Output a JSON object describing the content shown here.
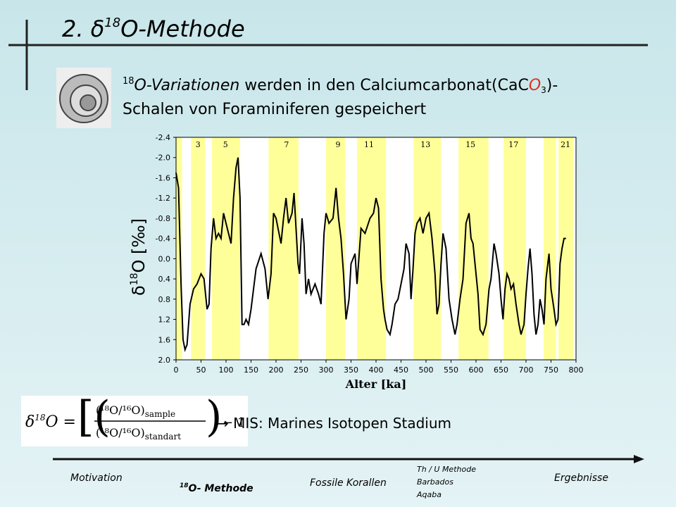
{
  "slide": {
    "title": {
      "prefix": "2. δ",
      "sup": "18",
      "rest": "O-Methode"
    },
    "intro": {
      "sup1": "18",
      "line1a": "O-Variationen",
      "line1b": " werden in den Calciumcarbonat(CaC",
      "o": "O",
      "sub3": "3",
      "line1c": ")-",
      "line2": "Schalen von Foraminiferen gespeichert"
    },
    "formula": {
      "lhs": "δ",
      "lhs_sup": "18",
      "lhs_o": "O =",
      "num": "(¹⁸O/¹⁶O)",
      "num_sub": "sample",
      "den": "(¹⁸O/¹⁶O)",
      "den_sub": "standart",
      "tail": "− 1"
    },
    "annotation": "→ MIS: Marines Isotopen Stadium",
    "nav": {
      "motivation": "Motivation",
      "methode_sup": "18",
      "methode": "O- Methode",
      "korallen": "Fossile Korallen",
      "thu": "Th / U Methode",
      "barbados": "Barbados",
      "aqaba": "Aqaba",
      "ergebnisse": "Ergebnisse"
    }
  },
  "chart_data": {
    "type": "line",
    "y_label": {
      "delta": "δ",
      "sup": "18",
      "rest": "O [‰]"
    },
    "x_label": "Alter [ka]",
    "xlim": [
      0,
      800
    ],
    "xticks": [
      0,
      50,
      100,
      150,
      200,
      250,
      300,
      350,
      400,
      450,
      500,
      550,
      600,
      650,
      700,
      750,
      800
    ],
    "ylim": [
      2.0,
      -2.4
    ],
    "yticks": [
      -2.4,
      {
        "value": -2,
        "label": "-2.0"
      },
      -1.6,
      -1.2,
      -0.8,
      -0.4,
      {
        "value": 0,
        "label": "0.0"
      },
      0.4,
      0.8,
      1.2,
      1.6,
      {
        "value": 2,
        "label": "2.0"
      }
    ],
    "band_color": "#ffff99",
    "bands": [
      [
        0,
        12
      ],
      [
        30,
        58
      ],
      [
        72,
        128
      ],
      [
        185,
        245
      ],
      [
        300,
        338
      ],
      [
        362,
        420
      ],
      [
        475,
        530
      ],
      [
        565,
        625
      ],
      [
        655,
        700
      ],
      [
        735,
        760
      ],
      [
        765,
        795
      ]
    ],
    "stage_labels": [
      {
        "label": "3",
        "x": 44
      },
      {
        "label": "5",
        "x": 99
      },
      {
        "label": "7",
        "x": 221
      },
      {
        "label": "9",
        "x": 324
      },
      {
        "label": "11",
        "x": 386
      },
      {
        "label": "13",
        "x": 499
      },
      {
        "label": "15",
        "x": 589
      },
      {
        "label": "17",
        "x": 675
      },
      {
        "label": "21",
        "x": 779
      }
    ],
    "series": [
      {
        "color": "#000000",
        "x": [
          0,
          5,
          10,
          14,
          18,
          22,
          28,
          35,
          42,
          50,
          56,
          60,
          62,
          66,
          70,
          75,
          80,
          85,
          90,
          95,
          100,
          105,
          110,
          115,
          120,
          124,
          128,
          132,
          136,
          140,
          145,
          150,
          160,
          170,
          178,
          184,
          190,
          195,
          200,
          210,
          215,
          220,
          225,
          232,
          236,
          240,
          244,
          247,
          252,
          256,
          260,
          265,
          270,
          278,
          285,
          290,
          296,
          300,
          306,
          314,
          320,
          325,
          330,
          335,
          340,
          346,
          350,
          358,
          362,
          370,
          378,
          388,
          395,
          400,
          405,
          410,
          415,
          418,
          422,
          428,
          432,
          438,
          444,
          450,
          456,
          460,
          466,
          470,
          474,
          478,
          482,
          488,
          494,
          500,
          506,
          512,
          518,
          522,
          526,
          530,
          534,
          540,
          546,
          552,
          558,
          562,
          568,
          574,
          580,
          586,
          590,
          594,
          600,
          604,
          608,
          614,
          620,
          626,
          630,
          636,
          640,
          646,
          650,
          654,
          658,
          662,
          666,
          670,
          675,
          680,
          686,
          690,
          696,
          700,
          704,
          708,
          712,
          716,
          720,
          724,
          728,
          732,
          736,
          740,
          746,
          750,
          756,
          760,
          764,
          768,
          772,
          776,
          780
        ],
        "values": [
          -1.7,
          -1.4,
          0.5,
          1.6,
          1.8,
          1.7,
          0.9,
          0.6,
          0.5,
          0.3,
          0.4,
          0.8,
          1.0,
          0.9,
          -0.2,
          -0.8,
          -0.4,
          -0.5,
          -0.4,
          -0.9,
          -0.7,
          -0.5,
          -0.3,
          -1.2,
          -1.8,
          -2.0,
          -1.2,
          1.3,
          1.3,
          1.2,
          1.3,
          1.0,
          0.2,
          -0.1,
          0.2,
          0.8,
          0.3,
          -0.9,
          -0.8,
          -0.3,
          -0.8,
          -1.2,
          -0.7,
          -0.9,
          -1.3,
          -0.6,
          0.1,
          0.3,
          -0.8,
          -0.3,
          0.7,
          0.4,
          0.7,
          0.5,
          0.7,
          0.9,
          -0.5,
          -0.9,
          -0.7,
          -0.8,
          -1.4,
          -0.8,
          -0.4,
          0.3,
          1.2,
          0.8,
          0.1,
          -0.1,
          0.5,
          -0.6,
          -0.5,
          -0.8,
          -0.9,
          -1.2,
          -1.0,
          0.4,
          1.0,
          1.2,
          1.4,
          1.5,
          1.3,
          0.9,
          0.8,
          0.5,
          0.2,
          -0.3,
          -0.1,
          0.8,
          0.2,
          -0.5,
          -0.7,
          -0.8,
          -0.5,
          -0.8,
          -0.9,
          -0.4,
          0.3,
          1.1,
          0.9,
          0.1,
          -0.5,
          -0.2,
          0.8,
          1.2,
          1.5,
          1.3,
          0.8,
          0.4,
          -0.7,
          -0.9,
          -0.4,
          -0.3,
          0.3,
          0.7,
          1.4,
          1.5,
          1.3,
          0.6,
          0.4,
          -0.3,
          -0.1,
          0.3,
          0.8,
          1.2,
          0.6,
          0.3,
          0.4,
          0.6,
          0.5,
          0.9,
          1.3,
          1.5,
          1.3,
          0.7,
          0.2,
          -0.2,
          0.3,
          1.1,
          1.5,
          1.3,
          0.8,
          1.0,
          1.3,
          0.4,
          -0.1,
          0.6,
          1.0,
          1.3,
          1.2,
          0.1,
          -0.2,
          -0.4,
          -0.4
        ]
      }
    ]
  }
}
